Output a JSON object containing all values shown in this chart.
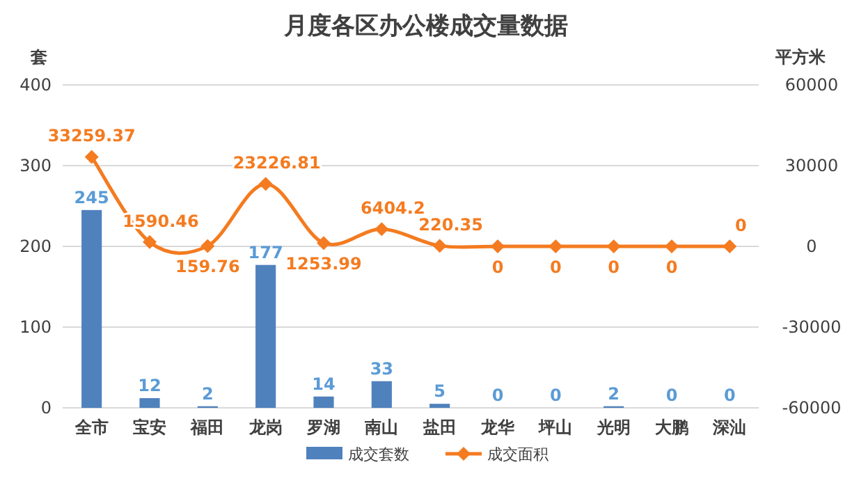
{
  "chart_data": {
    "type": "bar",
    "title": "月度各区办公楼成交量数据",
    "ylabel": "套",
    "y2label": "平方米",
    "categories": [
      "全市",
      "宝安",
      "福田",
      "龙岗",
      "罗湖",
      "南山",
      "盐田",
      "龙华",
      "坪山",
      "光明",
      "大鹏",
      "深汕"
    ],
    "series": [
      {
        "name": "成交套数",
        "color": "#4f81bd",
        "values": [
          245,
          12,
          2,
          177,
          14,
          33,
          5,
          0,
          0,
          2,
          0,
          0
        ]
      },
      {
        "name": "成交面积",
        "type": "line",
        "axis": "y2",
        "color": "#f47b20",
        "marker": "diamond",
        "values": [
          33259.37,
          1590.46,
          159.76,
          23226.81,
          1253.99,
          6404.2,
          220.35,
          0,
          0,
          0,
          0,
          0
        ]
      }
    ],
    "ylim": [
      0,
      400
    ],
    "yticks": [
      0,
      100,
      200,
      300,
      400
    ],
    "y2lim": [
      -60000,
      60000
    ],
    "y2ticks": [
      -60000,
      -30000,
      0,
      30000,
      60000
    ],
    "grid": "y",
    "legend": "bottom",
    "data_labels": true
  }
}
